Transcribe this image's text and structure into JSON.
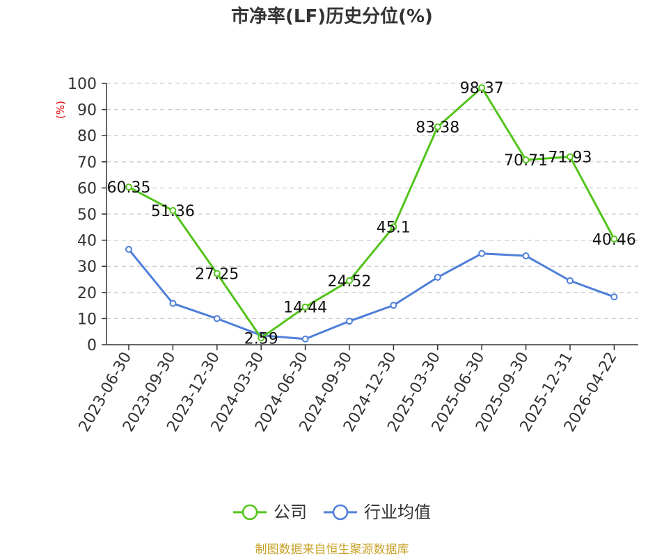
{
  "title": "市净率(LF)历史分位(%)",
  "unit": "(%)",
  "source": "制图数据来自恒生聚源数据库",
  "colors": {
    "company": "#52c41a",
    "industry": "#4f7fd9",
    "grid": "#cccccc",
    "axis": "#333333",
    "unit": "#e00000",
    "source": "#c9a227"
  },
  "chart_data": {
    "type": "line",
    "title": "市净率(LF)历史分位(%)",
    "ylabel": "(%)",
    "xlabel": "",
    "ylim": [
      0,
      100
    ],
    "yticks": [
      0,
      10,
      20,
      30,
      40,
      50,
      60,
      70,
      80,
      90,
      100
    ],
    "grid": true,
    "legend_position": "bottom",
    "categories": [
      "2023-06-30",
      "2023-09-30",
      "2023-12-30",
      "2024-03-30",
      "2024-06-30",
      "2024-09-30",
      "2024-12-30",
      "2025-03-30",
      "2025-06-30",
      "2025-09-30",
      "2025-12-31",
      "2026-04-22"
    ],
    "series": [
      {
        "name": "公司",
        "values": [
          60.35,
          51.36,
          27.25,
          2.59,
          14.44,
          24.52,
          45.1,
          83.38,
          98.37,
          70.71,
          71.93,
          40.46
        ],
        "labels": [
          "60.35",
          "51.36",
          "27.25",
          "2.59",
          "14.44",
          "24.52",
          "45.1",
          "83.38",
          "98.37",
          "70.71",
          "71.93",
          "40.46"
        ]
      },
      {
        "name": "行业均值",
        "values": [
          36.5,
          15.8,
          10.0,
          3.6,
          2.2,
          9.0,
          15.1,
          25.8,
          34.9,
          34.0,
          24.5,
          18.3
        ]
      }
    ]
  }
}
